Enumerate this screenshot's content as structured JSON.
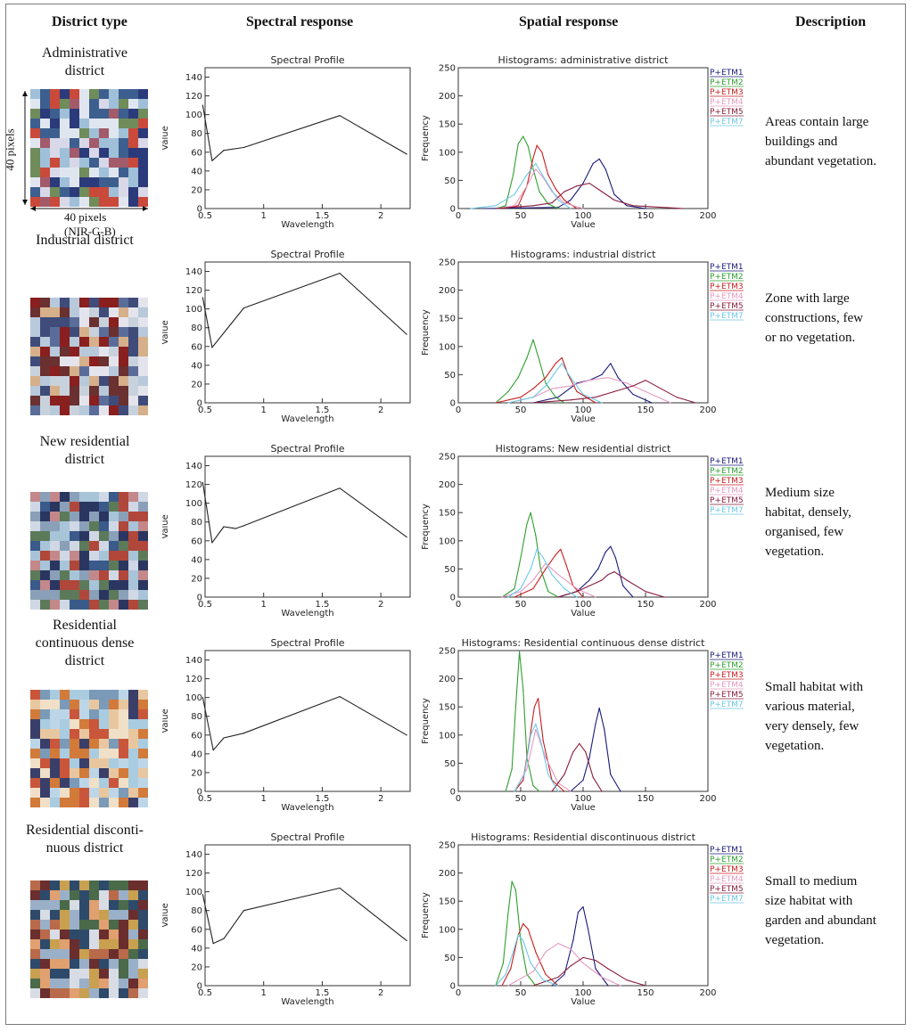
{
  "headers": {
    "district_type": "District type",
    "spectral": "Spectral response",
    "spatial": "Spatial response",
    "description": "Description"
  },
  "pixel_labels": {
    "vertical": "40 pixels",
    "horizontal": "40 pixels",
    "bands": "(NIR-G-B)"
  },
  "rows": [
    {
      "title_lines": [
        "Administrative",
        "district"
      ],
      "desc_lines": [
        "Areas contain large",
        "buildings and",
        "abundant vegetation."
      ],
      "thumb_palette": [
        "#2b3a7a",
        "#9fc0d8",
        "#c94a3a",
        "#6f8c5a",
        "#d8d8e8",
        "#3c5f8f",
        "#a35a6a",
        "#e0e6f0"
      ]
    },
    {
      "title_lines": [
        "Industrial district"
      ],
      "desc_lines": [
        "Zone with large",
        "constructions,   few",
        "or   no vegetation."
      ],
      "thumb_palette": [
        "#8a1f1f",
        "#c8d2dc",
        "#3f4c7a",
        "#d6b08a",
        "#b7c9da",
        "#6b3030",
        "#e4e4ec",
        "#5a6d9a"
      ]
    },
    {
      "title_lines": [
        "New residential",
        "district"
      ],
      "desc_lines": [
        "Medium size",
        "habitat, densely,",
        "organised, few",
        "vegetation."
      ],
      "thumb_palette": [
        "#3a5a8a",
        "#a8c4d8",
        "#b0473a",
        "#5c7a5a",
        "#d0d8e6",
        "#2a3660",
        "#8aa0b8",
        "#c2888a"
      ]
    },
    {
      "title_lines": [
        "Residential",
        "continuous dense",
        "district"
      ],
      "desc_lines": [
        "Small habitat with",
        "various material,",
        "very densely, few",
        "vegetation."
      ],
      "thumb_palette": [
        "#d27a3a",
        "#a9cce0",
        "#e8c7a0",
        "#3a3f6a",
        "#bcd6e8",
        "#c9563a",
        "#f0e0c8",
        "#7a9ab8"
      ]
    },
    {
      "title_lines": [
        "Residential disconti-",
        "nuous district"
      ],
      "desc_lines": [
        "Small  to  medium",
        "size habitat with",
        "garden and abundant",
        "vegetation."
      ],
      "thumb_palette": [
        "#6a2e2e",
        "#9ab0c8",
        "#c8a050",
        "#2e4a6a",
        "#b86a4a",
        "#d8dce4",
        "#4a6a4a",
        "#e0a070"
      ]
    }
  ],
  "legend_colors": {
    "P+ETM1": "#1a1a7a",
    "P+ETM2": "#2ea02e",
    "P+ETM3": "#c81e1e",
    "P+ETM4": "#e49ac0",
    "P+ETM5": "#8a1c3c",
    "P+ETM7": "#6cc8e8"
  },
  "chart_data": [
    {
      "type": "line",
      "title": "Spectral Profile",
      "xlabel": "Wavelength",
      "ylabel": "Value",
      "xlim": [
        0.5,
        2.25
      ],
      "ylim": [
        0,
        150
      ],
      "xticks": [
        0.5,
        1.0,
        1.5,
        2.0
      ],
      "yticks": [
        0,
        20,
        40,
        60,
        80,
        100,
        120,
        140
      ],
      "series": [
        {
          "x": [
            0.48,
            0.56,
            0.66,
            0.83,
            1.65,
            2.22
          ],
          "values": [
            110,
            51,
            62,
            65,
            99,
            58
          ]
        }
      ]
    },
    {
      "type": "line",
      "title": "Histograms: administrative district",
      "xlabel": "Value",
      "ylabel": "Frequency",
      "xlim": [
        0,
        200
      ],
      "ylim": [
        0,
        250
      ],
      "xticks": [
        0,
        50,
        100,
        150,
        200
      ],
      "yticks": [
        0,
        50,
        100,
        150,
        200,
        250
      ],
      "series": [
        {
          "name": "P+ETM1",
          "x": [
            20,
            80,
            90,
            100,
            108,
            113,
            118,
            125,
            135,
            150
          ],
          "values": [
            0,
            2,
            15,
            45,
            80,
            88,
            70,
            25,
            5,
            0
          ]
        },
        {
          "name": "P+ETM2",
          "x": [
            30,
            38,
            44,
            48,
            52,
            56,
            60,
            65,
            72,
            80
          ],
          "values": [
            0,
            5,
            60,
            115,
            128,
            110,
            70,
            30,
            8,
            0
          ]
        },
        {
          "name": "P+ETM3",
          "x": [
            35,
            48,
            55,
            60,
            63,
            67,
            72,
            78,
            85,
            95
          ],
          "values": [
            0,
            5,
            40,
            90,
            112,
            100,
            60,
            35,
            15,
            0
          ]
        },
        {
          "name": "P+ETM4",
          "x": [
            30,
            45,
            55,
            62,
            68,
            75,
            85,
            100
          ],
          "values": [
            0,
            5,
            40,
            70,
            55,
            30,
            10,
            0
          ]
        },
        {
          "name": "P+ETM5",
          "x": [
            30,
            60,
            75,
            85,
            95,
            105,
            115,
            125,
            140,
            180
          ],
          "values": [
            0,
            5,
            10,
            30,
            40,
            45,
            30,
            15,
            5,
            0
          ]
        },
        {
          "name": "P+ETM7",
          "x": [
            10,
            30,
            45,
            55,
            62,
            70,
            80,
            90
          ],
          "values": [
            0,
            5,
            25,
            60,
            80,
            50,
            15,
            0
          ]
        }
      ]
    },
    {
      "type": "line",
      "title": "Spectral Profile",
      "xlabel": "Wavelength",
      "ylabel": "Value",
      "xlim": [
        0.5,
        2.25
      ],
      "ylim": [
        0,
        150
      ],
      "xticks": [
        0.5,
        1.0,
        1.5,
        2.0
      ],
      "yticks": [
        0,
        20,
        40,
        60,
        80,
        100,
        120,
        140
      ],
      "series": [
        {
          "x": [
            0.48,
            0.56,
            0.83,
            1.65,
            2.22
          ],
          "values": [
            112,
            59,
            101,
            138,
            73
          ]
        }
      ]
    },
    {
      "type": "line",
      "title": "Histograms: industrial district",
      "xlabel": "Value",
      "ylabel": "Frequency",
      "xlim": [
        0,
        200
      ],
      "ylim": [
        0,
        250
      ],
      "xticks": [
        0,
        50,
        100,
        150,
        200
      ],
      "yticks": [
        0,
        50,
        100,
        150,
        200,
        250
      ],
      "series": [
        {
          "name": "P+ETM1",
          "x": [
            60,
            80,
            95,
            105,
            115,
            122,
            128,
            140,
            155
          ],
          "values": [
            0,
            10,
            35,
            40,
            50,
            70,
            45,
            15,
            0
          ]
        },
        {
          "name": "P+ETM2",
          "x": [
            30,
            40,
            48,
            55,
            60,
            65,
            70,
            78,
            85
          ],
          "values": [
            0,
            20,
            45,
            80,
            112,
            75,
            35,
            10,
            0
          ]
        },
        {
          "name": "P+ETM3",
          "x": [
            30,
            50,
            60,
            70,
            78,
            83,
            88,
            95,
            110
          ],
          "values": [
            0,
            10,
            25,
            45,
            70,
            80,
            50,
            20,
            0
          ]
        },
        {
          "name": "P+ETM4",
          "x": [
            40,
            60,
            75,
            90,
            105,
            120,
            135,
            150,
            170
          ],
          "values": [
            0,
            10,
            25,
            30,
            40,
            45,
            35,
            20,
            0
          ]
        },
        {
          "name": "P+ETM5",
          "x": [
            60,
            90,
            110,
            125,
            140,
            150,
            160,
            175,
            190
          ],
          "values": [
            0,
            5,
            10,
            20,
            30,
            40,
            28,
            10,
            0
          ]
        },
        {
          "name": "P+ETM7",
          "x": [
            40,
            60,
            70,
            78,
            83,
            90,
            100,
            115
          ],
          "values": [
            0,
            10,
            30,
            55,
            70,
            45,
            15,
            0
          ]
        }
      ]
    },
    {
      "type": "line",
      "title": "Spectral Profile",
      "xlabel": "Wavelength",
      "ylabel": "Value",
      "xlim": [
        0.5,
        2.25
      ],
      "ylim": [
        0,
        150
      ],
      "xticks": [
        0.5,
        1.0,
        1.5,
        2.0
      ],
      "yticks": [
        0,
        20,
        40,
        60,
        80,
        100,
        120,
        140
      ],
      "series": [
        {
          "x": [
            0.48,
            0.56,
            0.66,
            0.76,
            0.83,
            1.65,
            2.22
          ],
          "values": [
            122,
            58,
            75,
            73,
            76,
            116,
            64
          ]
        }
      ]
    },
    {
      "type": "line",
      "title": "Histograms: New residential district",
      "xlabel": "Value",
      "ylabel": "Frequency",
      "xlim": [
        0,
        200
      ],
      "ylim": [
        0,
        250
      ],
      "xticks": [
        0,
        50,
        100,
        150,
        200
      ],
      "yticks": [
        0,
        50,
        100,
        150,
        200,
        250
      ],
      "series": [
        {
          "name": "P+ETM1",
          "x": [
            80,
            95,
            105,
            112,
            118,
            122,
            126,
            132,
            140
          ],
          "values": [
            0,
            10,
            30,
            50,
            80,
            90,
            70,
            20,
            0
          ]
        },
        {
          "name": "P+ETM2",
          "x": [
            35,
            45,
            50,
            55,
            58,
            62,
            66,
            72,
            80
          ],
          "values": [
            0,
            15,
            70,
            130,
            150,
            110,
            50,
            10,
            0
          ]
        },
        {
          "name": "P+ETM3",
          "x": [
            45,
            60,
            70,
            78,
            82,
            86,
            92,
            100
          ],
          "values": [
            0,
            15,
            50,
            75,
            85,
            60,
            20,
            0
          ]
        },
        {
          "name": "P+ETM4",
          "x": [
            35,
            50,
            60,
            70,
            80,
            95,
            110
          ],
          "values": [
            0,
            10,
            30,
            60,
            40,
            15,
            0
          ]
        },
        {
          "name": "P+ETM5",
          "x": [
            80,
            95,
            105,
            115,
            120,
            125,
            135,
            150,
            165
          ],
          "values": [
            0,
            10,
            20,
            30,
            40,
            45,
            30,
            10,
            0
          ]
        },
        {
          "name": "P+ETM7",
          "x": [
            40,
            50,
            58,
            63,
            68,
            75,
            85,
            95
          ],
          "values": [
            0,
            15,
            50,
            85,
            70,
            40,
            15,
            0
          ]
        }
      ]
    },
    {
      "type": "line",
      "title": "Spectral Profile",
      "xlabel": "Wavelength",
      "ylabel": "Value",
      "xlim": [
        0.5,
        2.25
      ],
      "ylim": [
        0,
        150
      ],
      "xticks": [
        0.5,
        1.0,
        1.5,
        2.0
      ],
      "yticks": [
        0,
        20,
        40,
        60,
        80,
        100,
        120,
        140
      ],
      "series": [
        {
          "x": [
            0.48,
            0.57,
            0.66,
            0.83,
            1.65,
            2.22
          ],
          "values": [
            100,
            44,
            57,
            62,
            101,
            60
          ]
        }
      ]
    },
    {
      "type": "line",
      "title": "Histograms: Residential continuous dense district",
      "xlabel": "Value",
      "ylabel": "Frequency",
      "xlim": [
        0,
        200
      ],
      "ylim": [
        0,
        250
      ],
      "xticks": [
        0,
        50,
        100,
        150,
        200
      ],
      "yticks": [
        0,
        50,
        100,
        150,
        200,
        250
      ],
      "series": [
        {
          "name": "P+ETM1",
          "x": [
            90,
            100,
            105,
            110,
            113,
            117,
            122,
            130
          ],
          "values": [
            0,
            20,
            60,
            120,
            148,
            110,
            30,
            0
          ]
        },
        {
          "name": "P+ETM2",
          "x": [
            38,
            43,
            46,
            49,
            52,
            55,
            60,
            65
          ],
          "values": [
            0,
            40,
            150,
            248,
            180,
            60,
            10,
            0
          ]
        },
        {
          "name": "P+ETM3",
          "x": [
            45,
            52,
            57,
            61,
            64,
            68,
            75,
            85
          ],
          "values": [
            0,
            20,
            90,
            150,
            165,
            90,
            20,
            0
          ]
        },
        {
          "name": "P+ETM4",
          "x": [
            45,
            55,
            62,
            70,
            80,
            90
          ],
          "values": [
            0,
            40,
            110,
            60,
            15,
            0
          ]
        },
        {
          "name": "P+ETM5",
          "x": [
            75,
            85,
            92,
            97,
            102,
            108,
            115
          ],
          "values": [
            0,
            30,
            70,
            85,
            70,
            25,
            0
          ]
        },
        {
          "name": "P+ETM7",
          "x": [
            45,
            53,
            58,
            62,
            66,
            72,
            80
          ],
          "values": [
            0,
            30,
            100,
            120,
            90,
            30,
            0
          ]
        }
      ]
    },
    {
      "type": "line",
      "title": "Spectral Profile",
      "xlabel": "Wavelength",
      "ylabel": "Value",
      "xlim": [
        0.5,
        2.25
      ],
      "ylim": [
        0,
        150
      ],
      "xticks": [
        0.5,
        1.0,
        1.5,
        2.0
      ],
      "yticks": [
        0,
        20,
        40,
        60,
        80,
        100,
        120,
        140
      ],
      "series": [
        {
          "x": [
            0.48,
            0.57,
            0.66,
            0.83,
            1.65,
            2.22
          ],
          "values": [
            97,
            45,
            50,
            80,
            104,
            48
          ]
        }
      ]
    },
    {
      "type": "line",
      "title": "Histograms: Residential discontinuous district",
      "xlabel": "Value",
      "ylabel": "Frequency",
      "xlim": [
        0,
        200
      ],
      "ylim": [
        0,
        250
      ],
      "xticks": [
        0,
        50,
        100,
        150,
        200
      ],
      "yticks": [
        0,
        50,
        100,
        150,
        200,
        250
      ],
      "series": [
        {
          "name": "P+ETM1",
          "x": [
            75,
            85,
            92,
            96,
            100,
            104,
            110,
            120
          ],
          "values": [
            0,
            20,
            80,
            130,
            140,
            100,
            30,
            0
          ]
        },
        {
          "name": "P+ETM2",
          "x": [
            30,
            36,
            40,
            43,
            46,
            50,
            55,
            62
          ],
          "values": [
            0,
            40,
            130,
            185,
            170,
            80,
            20,
            0
          ]
        },
        {
          "name": "P+ETM3",
          "x": [
            35,
            42,
            48,
            52,
            56,
            62,
            70,
            80
          ],
          "values": [
            0,
            30,
            90,
            110,
            100,
            60,
            20,
            0
          ]
        },
        {
          "name": "P+ETM4",
          "x": [
            40,
            60,
            70,
            80,
            90,
            100,
            115,
            130
          ],
          "values": [
            0,
            25,
            60,
            75,
            65,
            40,
            15,
            0
          ]
        },
        {
          "name": "P+ETM5",
          "x": [
            60,
            80,
            90,
            100,
            110,
            120,
            135,
            150
          ],
          "values": [
            0,
            15,
            35,
            50,
            45,
            30,
            10,
            0
          ]
        },
        {
          "name": "P+ETM7",
          "x": [
            30,
            38,
            44,
            48,
            52,
            58,
            68,
            80
          ],
          "values": [
            0,
            20,
            60,
            90,
            80,
            40,
            10,
            0
          ]
        }
      ]
    }
  ]
}
